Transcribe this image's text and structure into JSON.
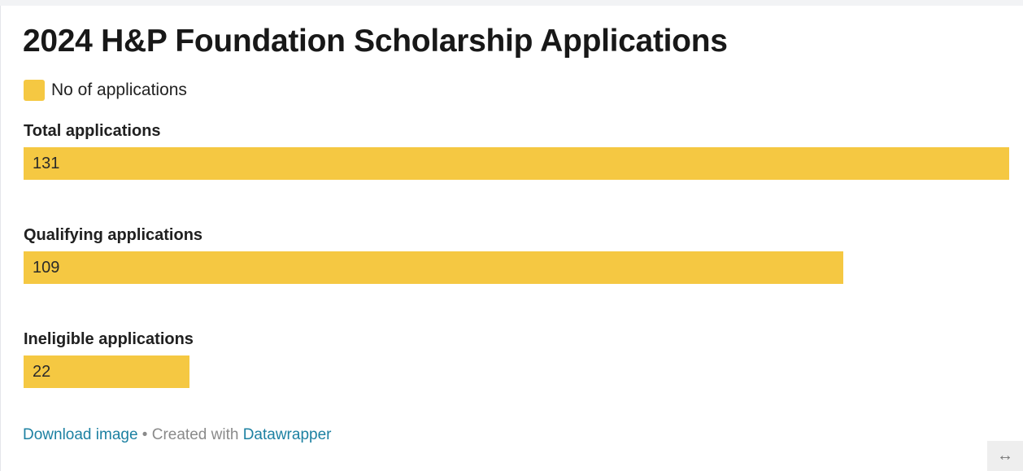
{
  "chart_data": {
    "type": "bar",
    "title": "2024 H&P Foundation Scholarship Applications",
    "categories": [
      "Total applications",
      "Qualifying applications",
      "Ineligible applications"
    ],
    "series": [
      {
        "name": "No of applications",
        "values": [
          131,
          109,
          22
        ]
      }
    ],
    "xlim": [
      0,
      131
    ],
    "legend": "top-left",
    "grid": false,
    "bar_color": "#f5c842"
  },
  "footer": {
    "download_label": "Download image",
    "separator": " • ",
    "created_with": "Created with ",
    "tool_name": "Datawrapper"
  },
  "icons": {
    "resize": "↔"
  }
}
